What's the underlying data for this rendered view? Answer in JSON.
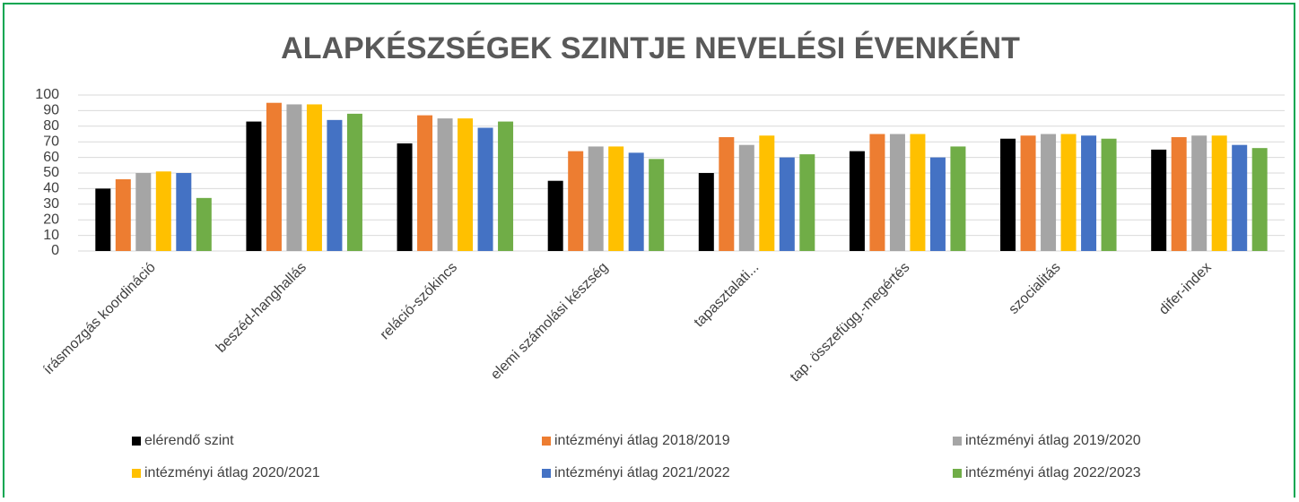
{
  "chart_data": {
    "type": "bar",
    "title": "ALAPKÉSZSÉGEK SZINTJE NEVELÉSI ÉVENKÉNT",
    "categories": [
      "írásmozgás koordináció",
      "beszéd-hanghallás",
      "reláció-szókincs",
      "elemi számolási készség",
      "tapasztalati...",
      "tap. összefügg.-megértés",
      "szocialitás",
      "difer-index"
    ],
    "series": [
      {
        "name": "elérendő szint",
        "color": "#000000",
        "values": [
          40,
          83,
          69,
          45,
          50,
          64,
          72,
          65
        ]
      },
      {
        "name": "intézményi átlag 2018/2019",
        "color": "#ed7d31",
        "values": [
          46,
          95,
          87,
          64,
          73,
          75,
          74,
          73
        ]
      },
      {
        "name": "intézményi átlag 2019/2020",
        "color": "#a5a5a5",
        "values": [
          50,
          94,
          85,
          67,
          68,
          75,
          75,
          74
        ]
      },
      {
        "name": "intézményi átlag 2020/2021",
        "color": "#ffc000",
        "values": [
          51,
          94,
          85,
          67,
          74,
          75,
          75,
          74
        ]
      },
      {
        "name": "intézményi átlag 2021/2022",
        "color": "#4472c4",
        "values": [
          50,
          84,
          79,
          63,
          60,
          60,
          74,
          68
        ]
      },
      {
        "name": "intézményi átlag 2022/2023",
        "color": "#70ad47",
        "values": [
          34,
          88,
          83,
          59,
          62,
          67,
          72,
          66
        ]
      }
    ],
    "ylim": [
      0,
      100
    ],
    "yticks": [
      0,
      10,
      20,
      30,
      40,
      50,
      60,
      70,
      80,
      90,
      100
    ],
    "grid": true,
    "legend": "bottom"
  }
}
